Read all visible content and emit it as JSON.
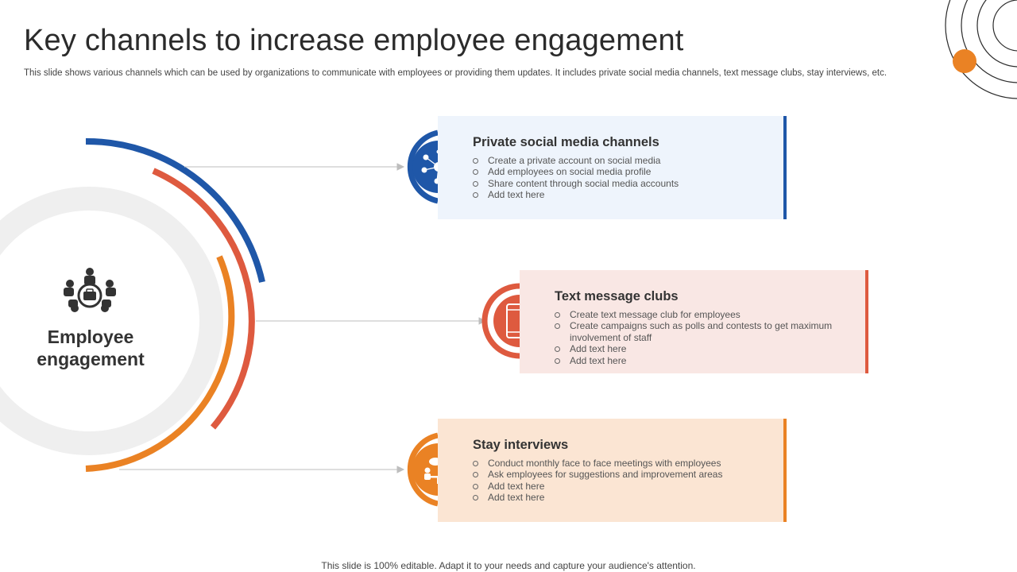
{
  "title": "Key channels to increase employee engagement",
  "subtitle": "This slide shows various channels which can be used by organizations to communicate with employees or providing them updates. It includes private social media channels, text message clubs, stay interviews, etc.",
  "center": {
    "label_line1": "Employee",
    "label_line2": "engagement",
    "icon": "team-briefcase-icon"
  },
  "colors": {
    "blue": "#1f57a8",
    "red": "#de5a3f",
    "orange": "#ea8224",
    "ring": "#efefef"
  },
  "channels": [
    {
      "title": "Private social media channels",
      "icon": "social-network-icon",
      "bullets": [
        "Create a private  account on social media",
        "Add employees on social media profile",
        "Share content through social media accounts",
        "Add text here"
      ]
    },
    {
      "title": "Text message clubs",
      "icon": "mobile-chat-icon",
      "bullets": [
        "Create text  message club for employees",
        "Create campaigns such as polls and contests to get maximum involvement of staff",
        "Add text here",
        "Add text here"
      ]
    },
    {
      "title": "Stay interviews",
      "icon": "meeting-icon",
      "bullets": [
        "Conduct monthly face to face meetings with employees",
        "Ask employees for suggestions and improvement areas",
        "Add text here",
        "Add text here"
      ]
    }
  ],
  "footer": "This slide is 100% editable. Adapt it to your needs and capture your audience's attention."
}
